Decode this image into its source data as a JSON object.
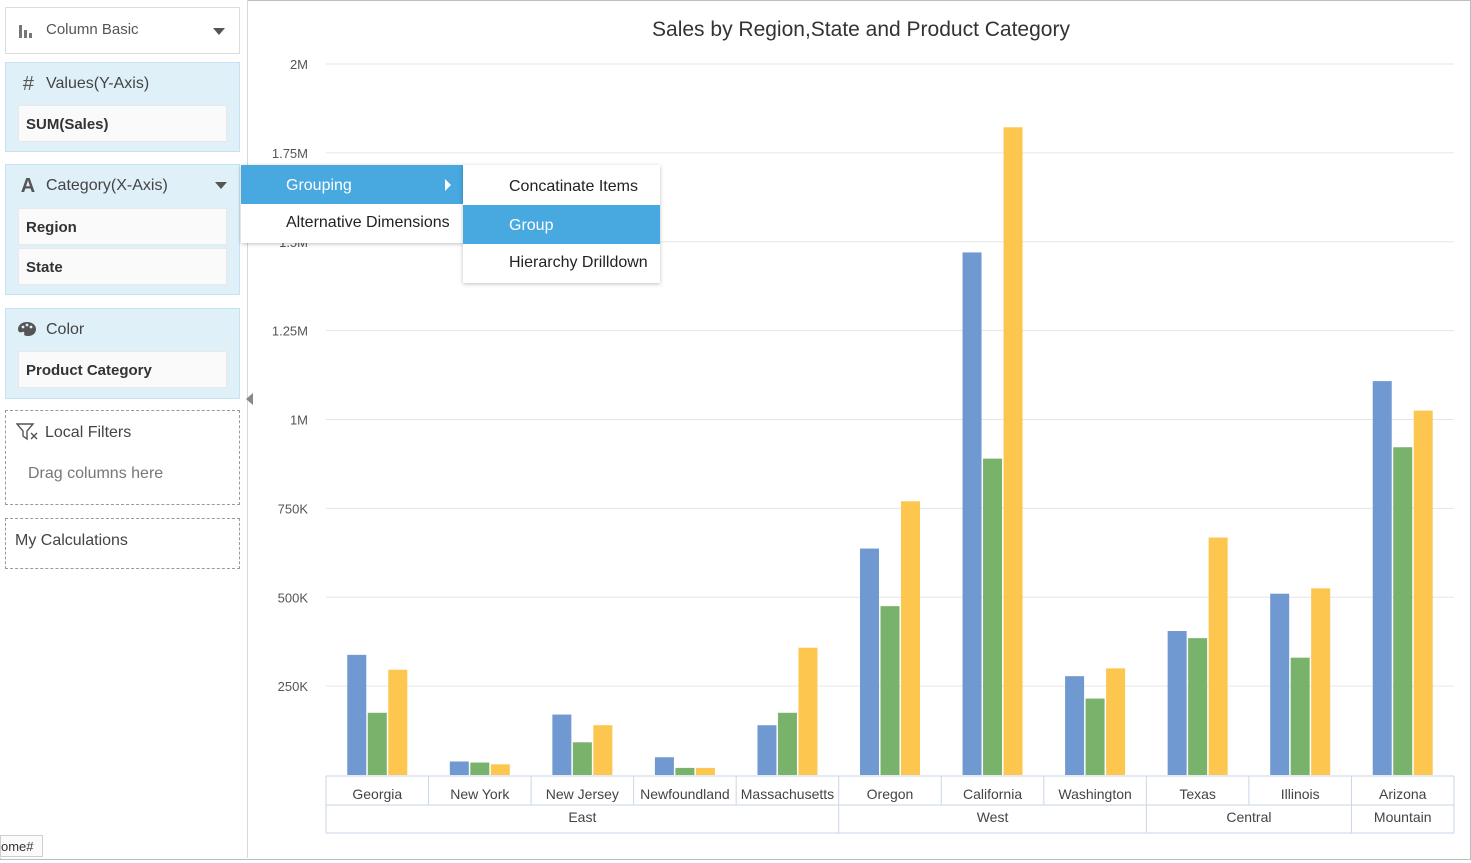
{
  "chart_type_selector": {
    "label": "Column Basic"
  },
  "values_box": {
    "title": "Values(Y-Axis)",
    "items": [
      "SUM(Sales)"
    ]
  },
  "category_box": {
    "title": "Category(X-Axis)",
    "items": [
      "Region",
      "State"
    ]
  },
  "color_box": {
    "title": "Color",
    "items": [
      "Product Category"
    ]
  },
  "local_filters": {
    "title": "Local Filters",
    "placeholder": "Drag columns here"
  },
  "my_calculations": {
    "title": "My Calculations"
  },
  "context_menu": {
    "items": [
      {
        "label": "Grouping",
        "active": true,
        "has_submenu": true
      },
      {
        "label": "Alternative Dimensions",
        "active": false
      }
    ]
  },
  "submenu": {
    "items": [
      {
        "label": "Concatinate Items",
        "active": false
      },
      {
        "label": "Group",
        "active": true
      },
      {
        "label": "Hierarchy Drilldown",
        "active": false
      }
    ]
  },
  "status_tooltip": "ome#",
  "chart_data": {
    "type": "bar",
    "title": "Sales by Region,State and Product Category",
    "categories": [
      "Georgia",
      "New York",
      "New Jersey",
      "Newfoundland",
      "Massachusetts",
      "Oregon",
      "California",
      "Washington",
      "Texas",
      "Illinois",
      "Arizona"
    ],
    "groups": [
      {
        "label": "East",
        "count": 5
      },
      {
        "label": "West",
        "count": 3
      },
      {
        "label": "Central",
        "count": 2
      },
      {
        "label": "Mountain",
        "count": 1
      }
    ],
    "series": [
      {
        "color": "#7199d1",
        "values": [
          338000,
          38000,
          170000,
          50000,
          140000,
          637000,
          1470000,
          278000,
          405000,
          510000,
          1108000
        ]
      },
      {
        "color": "#79b36b",
        "values": [
          175000,
          35000,
          92000,
          20000,
          175000,
          475000,
          890000,
          215000,
          385000,
          330000,
          922000
        ]
      },
      {
        "color": "#fcc64f",
        "values": [
          296000,
          30000,
          140000,
          20000,
          358000,
          770000,
          1822000,
          300000,
          668000,
          525000,
          1025000
        ]
      }
    ],
    "yticks": [
      "2M",
      "1.75M",
      "1.5M",
      "1.25M",
      "1M",
      "750K",
      "500K",
      "250K"
    ],
    "ylim": [
      0,
      2000000
    ],
    "grid": true,
    "legend": "none"
  },
  "colors": {
    "accent": "#47a9df",
    "panel": "#dff0f9"
  }
}
